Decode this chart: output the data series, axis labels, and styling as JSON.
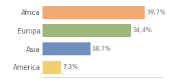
{
  "categories": [
    "America",
    "Asia",
    "Europa",
    "Africa"
  ],
  "values": [
    7.3,
    18.7,
    34.4,
    39.7
  ],
  "labels": [
    "7,3%",
    "18,7%",
    "34,4%",
    "39,7%"
  ],
  "bar_colors": [
    "#f2d06e",
    "#6e8fbf",
    "#9db87a",
    "#f0aa72"
  ],
  "background_color": "#ffffff",
  "xlim": [
    0,
    47
  ],
  "label_fontsize": 6.5,
  "tick_fontsize": 7.0,
  "bar_height": 0.72
}
